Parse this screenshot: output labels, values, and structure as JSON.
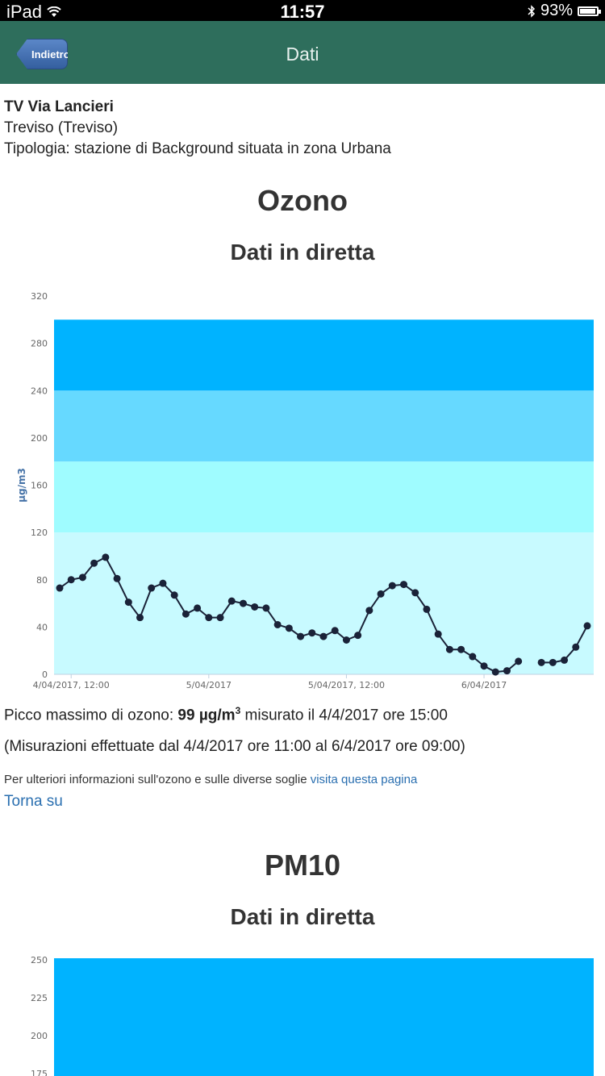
{
  "status_bar": {
    "device": "iPad",
    "time": "11:57",
    "battery": "93%",
    "battery_level": 0.93
  },
  "nav": {
    "back_label": "Indietro",
    "title": "Dati"
  },
  "station": {
    "name": "TV Via Lancieri",
    "city": "Treviso (Treviso)",
    "type": "Tipologia: stazione di Background situata in zona Urbana"
  },
  "ozone": {
    "title": "Ozono",
    "subtitle": "Dati in diretta",
    "peak_prefix": "Picco massimo di ozono: ",
    "peak_value": "99 µg/m",
    "peak_sup": "3",
    "peak_suffix": " misurato il 4/4/2017 ore 15:00",
    "range_text": "(Misurazioni effettuate dal 4/4/2017 ore 11:00 al 6/4/2017 ore 09:00)",
    "more_info_text": "Per ulteriori informazioni sull'ozono e sulle diverse soglie ",
    "more_info_link": "visita questa pagina",
    "back_to_top": "Torna su"
  },
  "pm10": {
    "title": "PM10",
    "subtitle": "Dati in diretta"
  },
  "chart_data": [
    {
      "type": "line",
      "ylabel": "µg/m3",
      "ylim": [
        0,
        320
      ],
      "yticks": [
        0,
        40,
        80,
        120,
        160,
        200,
        240,
        280,
        320
      ],
      "xticks": [
        {
          "label": "4/04/2017, 12:00",
          "index": 1
        },
        {
          "label": "5/04/2017",
          "index": 13
        },
        {
          "label": "5/04/2017, 12:00",
          "index": 25
        },
        {
          "label": "6/04/2017",
          "index": 37
        }
      ],
      "x_count": 47,
      "bands": [
        {
          "from": 0,
          "to": 120,
          "color": "#c8faff"
        },
        {
          "from": 120,
          "to": 180,
          "color": "#9ffcff"
        },
        {
          "from": 180,
          "to": 240,
          "color": "#66d9ff"
        },
        {
          "from": 240,
          "to": 300,
          "color": "#00b3ff"
        }
      ],
      "grid": false,
      "series": [
        {
          "color": "#1a2238",
          "values": [
            73,
            80,
            82,
            94,
            99,
            81,
            61,
            48,
            73,
            77,
            67,
            51,
            56,
            48,
            48,
            62,
            60,
            57,
            56,
            42,
            39,
            32,
            35,
            32,
            37,
            29,
            33,
            54,
            68,
            75,
            76,
            69,
            55,
            34,
            21,
            21,
            15,
            7,
            2,
            3,
            11,
            null,
            10,
            10,
            12,
            23,
            41
          ]
        }
      ]
    },
    {
      "type": "line",
      "ylabel": "",
      "ylim": [
        0,
        250
      ],
      "yticks": [
        175,
        200,
        225,
        250
      ],
      "bands": [
        {
          "from": 175,
          "to": 250,
          "color": "#00b3ff"
        }
      ],
      "series": []
    }
  ]
}
